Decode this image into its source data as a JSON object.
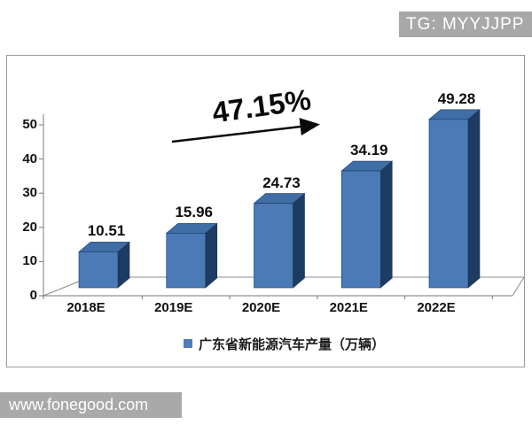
{
  "badge": {
    "text": "TG: MYYJJPP"
  },
  "watermark": {
    "text": "www.fonegood.com"
  },
  "colors": {
    "bar_front": "#4b7ab6",
    "bar_side": "#1c3c64",
    "bar_top": "#3f6ea6",
    "bar_outline": "#17365d",
    "axis_line": "#808080",
    "badge_gray": "#a8a8a8",
    "legend_marker": "#4e7dba"
  },
  "chart_data": {
    "type": "bar",
    "style": "3d-column",
    "title": "",
    "xlabel": "",
    "ylabel": "",
    "categories": [
      "2018E",
      "2019E",
      "2020E",
      "2021E",
      "2022E"
    ],
    "values": [
      10.51,
      15.96,
      24.73,
      34.19,
      49.28
    ],
    "data_labels": [
      "10.51",
      "15.96",
      "24.73",
      "34.19",
      "49.28"
    ],
    "yticks": [
      0,
      10,
      20,
      30,
      40,
      50
    ],
    "ylim": [
      0,
      50
    ],
    "grid": false,
    "legend_position": "bottom",
    "legend": "广东省新能源汽车产量（万辆）",
    "annotation": "47.15%",
    "annotation_meaning": "CAGR shown with rising arrow"
  }
}
